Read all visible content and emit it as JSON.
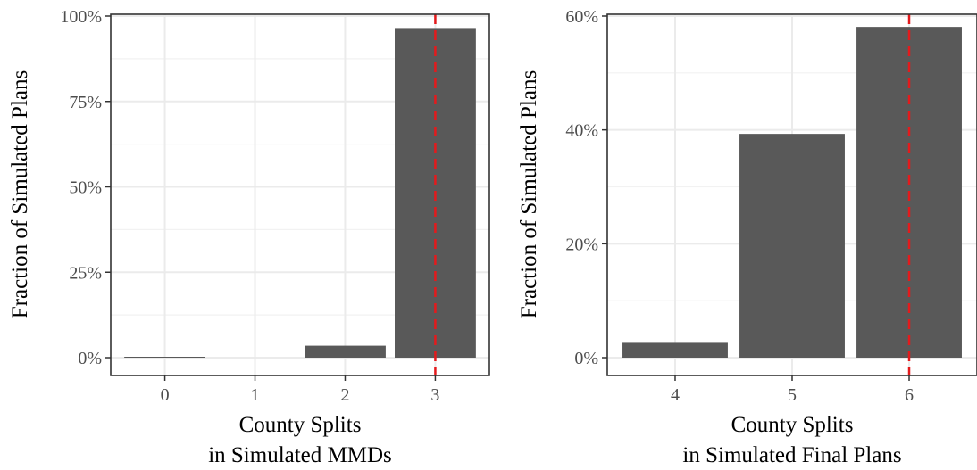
{
  "chart_data": [
    {
      "type": "bar",
      "categories": [
        "0",
        "1",
        "2",
        "3"
      ],
      "values": [
        0.002,
        0.0,
        0.035,
        0.965
      ],
      "xlabel_lines": [
        "County Splits",
        "in Simulated MMDs"
      ],
      "ylabel": "Fraction of Simulated Plans",
      "ylim": [
        0,
        1.0
      ],
      "y_ticks": [
        0,
        0.25,
        0.5,
        0.75,
        1.0
      ],
      "y_tick_labels": [
        "0%",
        "25%",
        "50%",
        "75%",
        "100%"
      ],
      "reference_line": {
        "x": "3",
        "color": "#e41a1c",
        "style": "dashed"
      },
      "bar_color": "#595959",
      "grid": true,
      "theme": "bw"
    },
    {
      "type": "bar",
      "categories": [
        "4",
        "5",
        "6"
      ],
      "values": [
        0.026,
        0.393,
        0.581
      ],
      "xlabel_lines": [
        "County Splits",
        "in Simulated Final Plans"
      ],
      "ylabel": "Fraction of Simulated Plans",
      "ylim": [
        0,
        0.6
      ],
      "y_ticks": [
        0,
        0.2,
        0.4,
        0.6
      ],
      "y_tick_labels": [
        "0%",
        "20%",
        "40%",
        "60%"
      ],
      "reference_line": {
        "x": "6",
        "color": "#e41a1c",
        "style": "dashed"
      },
      "bar_color": "#595959",
      "grid": true,
      "theme": "bw"
    }
  ]
}
